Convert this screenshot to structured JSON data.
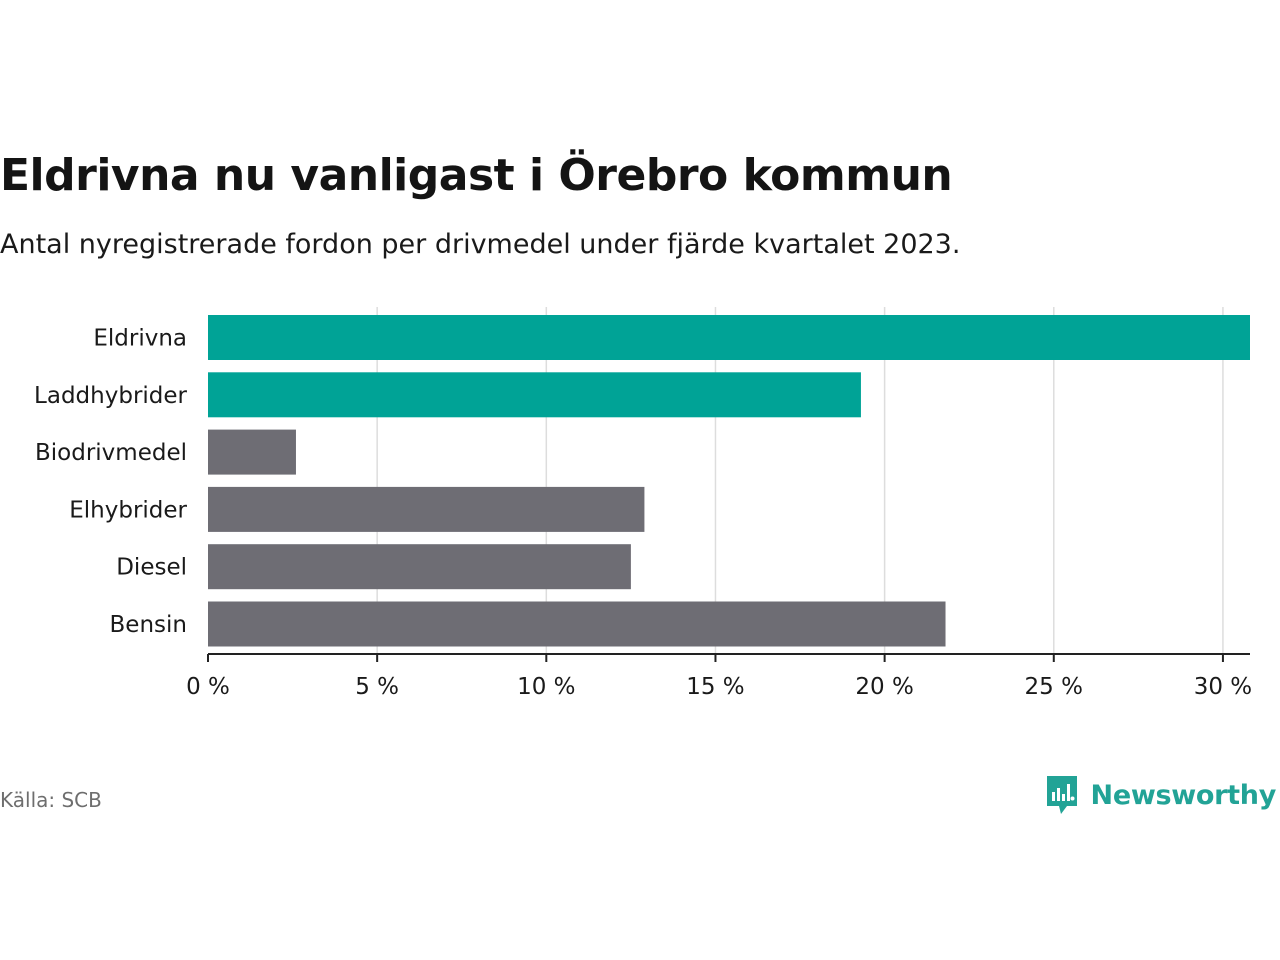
{
  "header": {
    "title": "Eldrivna nu vanligast i Örebro kommun",
    "subtitle": "Antal nyregistrerade fordon per drivmedel under fjärde kvartalet 2023."
  },
  "footer": {
    "source": "Källa: SCB",
    "brand": "Newsworthy",
    "brand_icon": "newsworthy-chart-bubble-icon"
  },
  "colors": {
    "highlight": "#00a396",
    "neutral": "#6e6d74",
    "grid": "#dddddd",
    "axis": "#222222"
  },
  "chart_data": {
    "type": "bar",
    "orientation": "horizontal",
    "categories": [
      "Eldrivna",
      "Laddhybrider",
      "Biodrivmedel",
      "Elhybrider",
      "Diesel",
      "Bensin"
    ],
    "values": [
      30.8,
      19.3,
      2.6,
      12.9,
      12.5,
      21.8
    ],
    "highlighted": [
      true,
      true,
      false,
      false,
      false,
      false
    ],
    "unit": "%",
    "xlim": [
      0,
      30.8
    ],
    "xticks": [
      0,
      5,
      10,
      15,
      20,
      25,
      30
    ],
    "xtick_labels": [
      "0 %",
      "5 %",
      "10 %",
      "15 %",
      "20 %",
      "25 %",
      "30 %"
    ],
    "title": "Eldrivna nu vanligast i Örebro kommun",
    "xlabel": "",
    "ylabel": "",
    "grid": true
  }
}
